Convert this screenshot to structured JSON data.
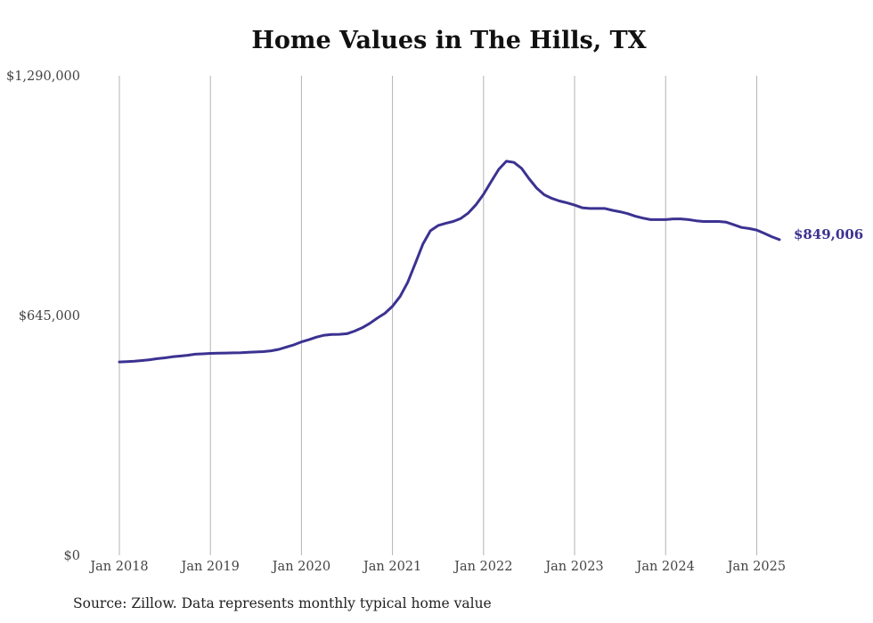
{
  "chart_data": {
    "type": "line",
    "title": "Home Values in The Hills, TX",
    "xlabel": "",
    "ylabel": "",
    "ylim": [
      0,
      1290000
    ],
    "y_ticks": [
      "$0",
      "$645,000",
      "$1,290,000"
    ],
    "y_tick_values": [
      0,
      645000,
      1290000
    ],
    "x_ticks": [
      "Jan 2018",
      "Jan 2019",
      "Jan 2020",
      "Jan 2021",
      "Jan 2022",
      "Jan 2023",
      "Jan 2024",
      "Jan 2025"
    ],
    "grid": "vertical",
    "line_color": "#3b3291",
    "end_label": "$849,006",
    "series": [
      {
        "x": [
          "2018-01",
          "2018-02",
          "2018-03",
          "2018-04",
          "2018-05",
          "2018-06",
          "2018-07",
          "2018-08",
          "2018-09",
          "2018-10",
          "2018-11",
          "2018-12",
          "2019-01",
          "2019-02",
          "2019-03",
          "2019-04",
          "2019-05",
          "2019-06",
          "2019-07",
          "2019-08",
          "2019-09",
          "2019-10",
          "2019-11",
          "2019-12",
          "2020-01",
          "2020-02",
          "2020-03",
          "2020-04",
          "2020-05",
          "2020-06",
          "2020-07",
          "2020-08",
          "2020-09",
          "2020-10",
          "2020-11",
          "2020-12",
          "2021-01",
          "2021-02",
          "2021-03",
          "2021-04",
          "2021-05",
          "2021-06",
          "2021-07",
          "2021-08",
          "2021-09",
          "2021-10",
          "2021-11",
          "2021-12",
          "2022-01",
          "2022-02",
          "2022-03",
          "2022-04",
          "2022-05",
          "2022-06",
          "2022-07",
          "2022-08",
          "2022-09",
          "2022-10",
          "2022-11",
          "2022-12",
          "2023-01",
          "2023-02",
          "2023-03",
          "2023-04",
          "2023-05",
          "2023-06",
          "2023-07",
          "2023-08",
          "2023-09",
          "2023-10",
          "2023-11",
          "2023-12",
          "2024-01",
          "2024-02",
          "2024-03",
          "2024-04",
          "2024-05",
          "2024-06",
          "2024-07",
          "2024-08",
          "2024-09",
          "2024-10",
          "2024-11",
          "2024-12",
          "2025-01",
          "2025-02",
          "2025-03",
          "2025-04"
        ],
        "values": [
          520000,
          521000,
          522000,
          524000,
          526000,
          529000,
          531000,
          534000,
          536000,
          538000,
          541000,
          542000,
          543000,
          543500,
          544000,
          544500,
          545000,
          546000,
          547000,
          548000,
          550000,
          554000,
          560000,
          566000,
          574000,
          580000,
          587000,
          592000,
          594000,
          594500,
          596000,
          603000,
          612000,
          624000,
          638000,
          651000,
          670000,
          696000,
          734000,
          785000,
          837000,
          873000,
          887000,
          893000,
          898000,
          906000,
          921000,
          943000,
          971000,
          1005000,
          1038000,
          1060000,
          1057000,
          1041000,
          1013000,
          988000,
          970000,
          960000,
          953000,
          948000,
          942000,
          935000,
          933000,
          933000,
          933000,
          928000,
          924000,
          919000,
          912000,
          907000,
          903000,
          903000,
          903000,
          905000,
          905000,
          903000,
          900000,
          898000,
          898000,
          898000,
          896000,
          889000,
          882000,
          879000,
          875000,
          866000,
          857000,
          849006
        ]
      }
    ]
  },
  "source_note": "Source: Zillow. Data represents monthly typical home value"
}
